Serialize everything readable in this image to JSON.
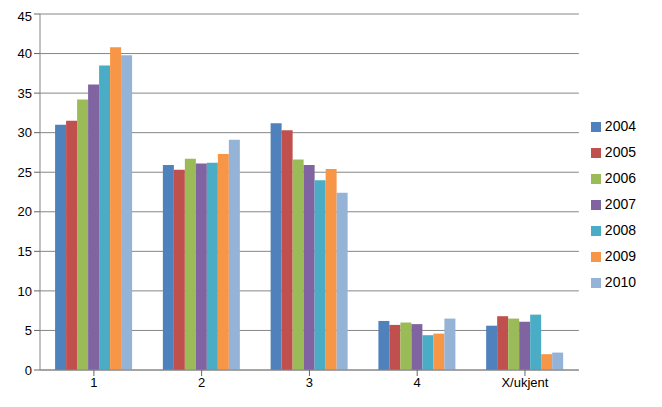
{
  "chart_data": {
    "type": "bar",
    "categories": [
      "1",
      "2",
      "3",
      "4",
      "X/ukjent"
    ],
    "series": [
      {
        "name": "2004",
        "color": "#4F81BD",
        "values": [
          31,
          25.9,
          31.2,
          6.2,
          5.6
        ]
      },
      {
        "name": "2005",
        "color": "#C0504D",
        "values": [
          31.5,
          25.3,
          30.3,
          5.7,
          6.8
        ]
      },
      {
        "name": "2006",
        "color": "#9BBB59",
        "values": [
          34.2,
          26.7,
          26.6,
          6,
          6.5
        ]
      },
      {
        "name": "2007",
        "color": "#8064A2",
        "values": [
          36.1,
          26.1,
          25.9,
          5.8,
          6.1
        ]
      },
      {
        "name": "2008",
        "color": "#4BACC6",
        "values": [
          38.5,
          26.2,
          24,
          4.4,
          7
        ]
      },
      {
        "name": "2009",
        "color": "#F79646",
        "values": [
          40.8,
          27.3,
          25.4,
          4.6,
          2
        ]
      },
      {
        "name": "2010",
        "color": "#95B3D7",
        "values": [
          39.8,
          29.1,
          22.4,
          6.5,
          2.2
        ]
      }
    ],
    "ylim": [
      0,
      45
    ],
    "yticks": [
      0,
      5,
      10,
      15,
      20,
      25,
      30,
      35,
      40,
      45
    ],
    "grid": true,
    "legend": "right"
  }
}
